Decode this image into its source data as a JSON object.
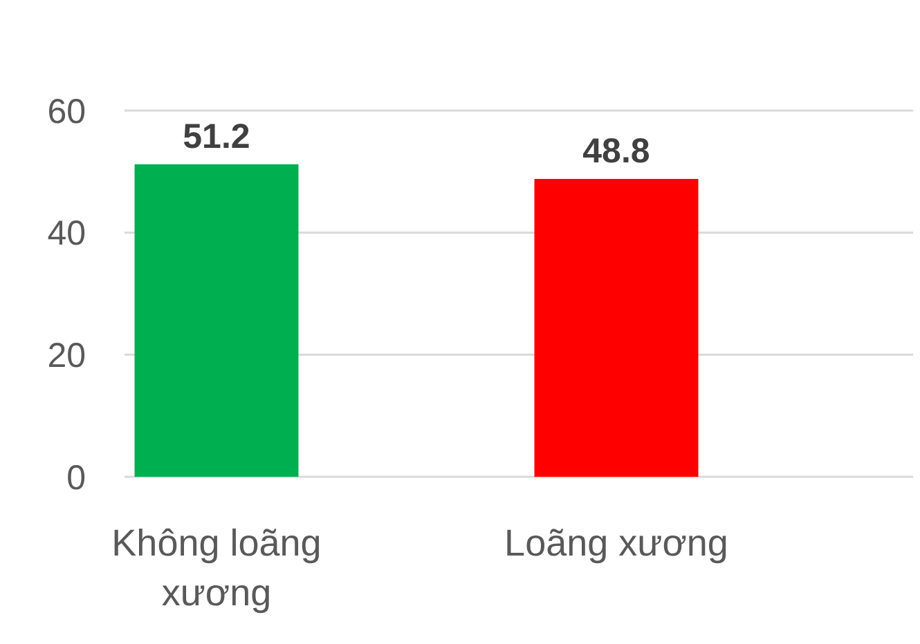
{
  "chart_data": {
    "type": "bar",
    "categories": [
      "Không loãng xương",
      "Loãng xương"
    ],
    "values": [
      51.2,
      48.8
    ],
    "colors": [
      "#00b050",
      "#ff0000"
    ],
    "ylim": [
      0,
      60
    ],
    "yticks": [
      0,
      20,
      40,
      60
    ],
    "grid": "y",
    "data_labels": true
  }
}
